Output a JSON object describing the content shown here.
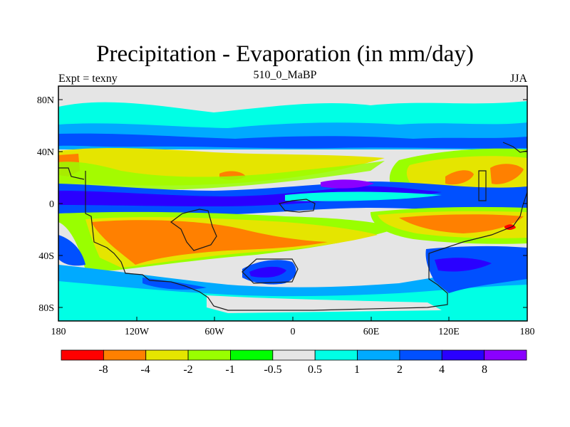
{
  "title": "Precipitation - Evaporation (in mm/day)",
  "subtitle_left": "Expt = texny",
  "subtitle_center": "510_0_MaBP",
  "subtitle_right": "JJA",
  "lat_labels": [
    "80N",
    "40N",
    "0",
    "40S",
    "80S"
  ],
  "lon_labels": [
    "180",
    "120W",
    "60W",
    "0",
    "60E",
    "120E",
    "180"
  ],
  "colorbar": {
    "colors": [
      "#ff0000",
      "#ff8000",
      "#e5e500",
      "#99ff00",
      "#00ff00",
      "#e5e5e5",
      "#00ffe5",
      "#00aaff",
      "#0050ff",
      "#2a00ff",
      "#8a00ff"
    ],
    "labels": [
      "-8",
      "-4",
      "-2",
      "-1",
      "-0.5",
      "0.5",
      "1",
      "2",
      "4",
      "8"
    ]
  }
}
